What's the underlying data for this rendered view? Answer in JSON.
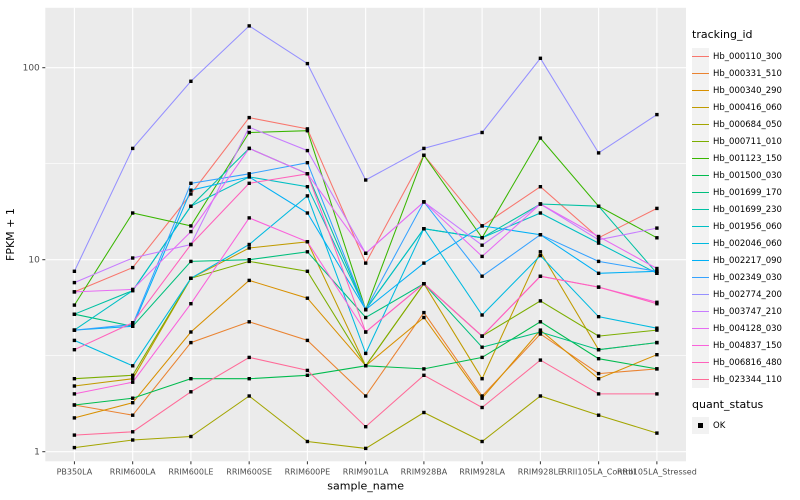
{
  "chart_data": {
    "type": "line",
    "title": "",
    "xlabel": "sample_name",
    "ylabel": "FPKM + 1",
    "x_categories": [
      "PB350LA",
      "RRIM600LA",
      "RRIM600LE",
      "RRIM600SE",
      "RRIM600PE",
      "RRIM901LA",
      "RRIM928BA",
      "RRIM928LA",
      "RRIM928LE",
      "RRII105LA_Control",
      "RRII105LA_Stressed"
    ],
    "y_axis": {
      "scale": "log10",
      "ticks": [
        1,
        10,
        100
      ],
      "minor_ticks": [
        3.162,
        31.62
      ],
      "range": [
        1,
        205
      ]
    },
    "series": [
      {
        "tracking_id": "Hb_000110_300",
        "color": "#F8766D",
        "values": [
          6.8,
          9.1,
          22,
          55,
          48,
          9.6,
          35,
          15,
          24,
          13,
          18.5
        ]
      },
      {
        "tracking_id": "Hb_000331_510",
        "color": "#EA8331",
        "values": [
          1.75,
          1.55,
          3.7,
          4.75,
          3.8,
          1.95,
          5.3,
          1.95,
          4.1,
          2.55,
          2.7
        ]
      },
      {
        "tracking_id": "Hb_000340_290",
        "color": "#D89000",
        "values": [
          1.5,
          1.8,
          4.2,
          7.8,
          6.3,
          2.8,
          5.0,
          1.9,
          4.3,
          2.4,
          3.2
        ]
      },
      {
        "tracking_id": "Hb_000416_060",
        "color": "#C09B00",
        "values": [
          2.2,
          2.4,
          8.0,
          11.5,
          12.4,
          2.8,
          7.5,
          2.4,
          11.0,
          3.4,
          3.7
        ]
      },
      {
        "tracking_id": "Hb_000684_050",
        "color": "#A3A500",
        "values": [
          1.05,
          1.15,
          1.2,
          1.95,
          1.13,
          1.04,
          1.6,
          1.13,
          1.95,
          1.55,
          1.25
        ]
      },
      {
        "tracking_id": "Hb_000711_010",
        "color": "#7CAE00",
        "values": [
          2.4,
          2.5,
          8.0,
          9.8,
          8.7,
          2.8,
          7.5,
          4.0,
          6.1,
          4.0,
          4.3
        ]
      },
      {
        "tracking_id": "Hb_001123_150",
        "color": "#39B600",
        "values": [
          5.8,
          17.5,
          15,
          46,
          47,
          5.5,
          35,
          13,
          43,
          19,
          13
        ]
      },
      {
        "tracking_id": "Hb_001500_030",
        "color": "#00BB4E",
        "values": [
          1.75,
          1.9,
          2.4,
          2.4,
          2.5,
          2.8,
          2.7,
          3.1,
          4.75,
          3.05,
          2.7
        ]
      },
      {
        "tracking_id": "Hb_001699_170",
        "color": "#00BF7D",
        "values": [
          5.2,
          4.5,
          9.8,
          10,
          11,
          5.0,
          7.5,
          3.5,
          4.2,
          3.4,
          3.7
        ]
      },
      {
        "tracking_id": "Hb_001699_230",
        "color": "#00C1A3",
        "values": [
          5.2,
          6.9,
          19,
          38,
          28,
          5.5,
          14.5,
          13,
          19.5,
          19,
          8.5
        ]
      },
      {
        "tracking_id": "Hb_001956_060",
        "color": "#00BFC4",
        "values": [
          4.3,
          6.9,
          19,
          27,
          24,
          5.5,
          14.5,
          13,
          17.5,
          12.2,
          8.5
        ]
      },
      {
        "tracking_id": "Hb_002046_060",
        "color": "#00BAE0",
        "values": [
          3.8,
          2.8,
          8.0,
          12,
          21.5,
          3.25,
          14.5,
          5.15,
          10.5,
          5.05,
          4.4
        ]
      },
      {
        "tracking_id": "Hb_002217_090",
        "color": "#00B0F6",
        "values": [
          4.3,
          4.5,
          23,
          27,
          17.5,
          5.5,
          9.6,
          15,
          13.5,
          8.5,
          8.7
        ]
      },
      {
        "tracking_id": "Hb_002349_030",
        "color": "#35A2FF",
        "values": [
          4.3,
          4.6,
          25,
          28,
          32,
          5.5,
          20,
          8.2,
          13.5,
          9.8,
          8.7
        ]
      },
      {
        "tracking_id": "Hb_002774_200",
        "color": "#9590FF",
        "values": [
          8.7,
          38,
          85,
          165,
          105,
          26,
          38,
          46,
          112,
          36,
          57
        ]
      },
      {
        "tracking_id": "Hb_003747_210",
        "color": "#C77CFF",
        "values": [
          7.6,
          10.2,
          12,
          49,
          37,
          10.8,
          20,
          11.9,
          19.5,
          12.7,
          14.6
        ]
      },
      {
        "tracking_id": "Hb_004128_030",
        "color": "#E76BF3",
        "values": [
          6.8,
          7.0,
          14,
          38,
          28,
          10.8,
          20,
          10.4,
          19.5,
          13.2,
          9.0
        ]
      },
      {
        "tracking_id": "Hb_004837_150",
        "color": "#FA62DB",
        "values": [
          2.0,
          2.3,
          5.9,
          16.5,
          12.4,
          4.2,
          7.5,
          4.0,
          8.2,
          7.2,
          6.0
        ]
      },
      {
        "tracking_id": "Hb_006816_480",
        "color": "#FF62BC",
        "values": [
          3.4,
          4.7,
          12,
          25,
          28,
          4.2,
          7.5,
          4.0,
          8.2,
          7.2,
          5.9
        ]
      },
      {
        "tracking_id": "Hb_023344_110",
        "color": "#FF6A98",
        "values": [
          1.22,
          1.27,
          2.05,
          3.1,
          2.65,
          1.35,
          2.5,
          1.7,
          3.0,
          2.0,
          2.0
        ]
      }
    ],
    "marker": "filled-black-square",
    "legend": {
      "title": "tracking_id"
    },
    "quant_status_legend": {
      "title": "quant_status",
      "items": [
        "OK"
      ]
    },
    "panel_background": "#EBEBEB",
    "gridline_color": "#FFFFFF",
    "tick_label_color": "#4D4D4D"
  }
}
